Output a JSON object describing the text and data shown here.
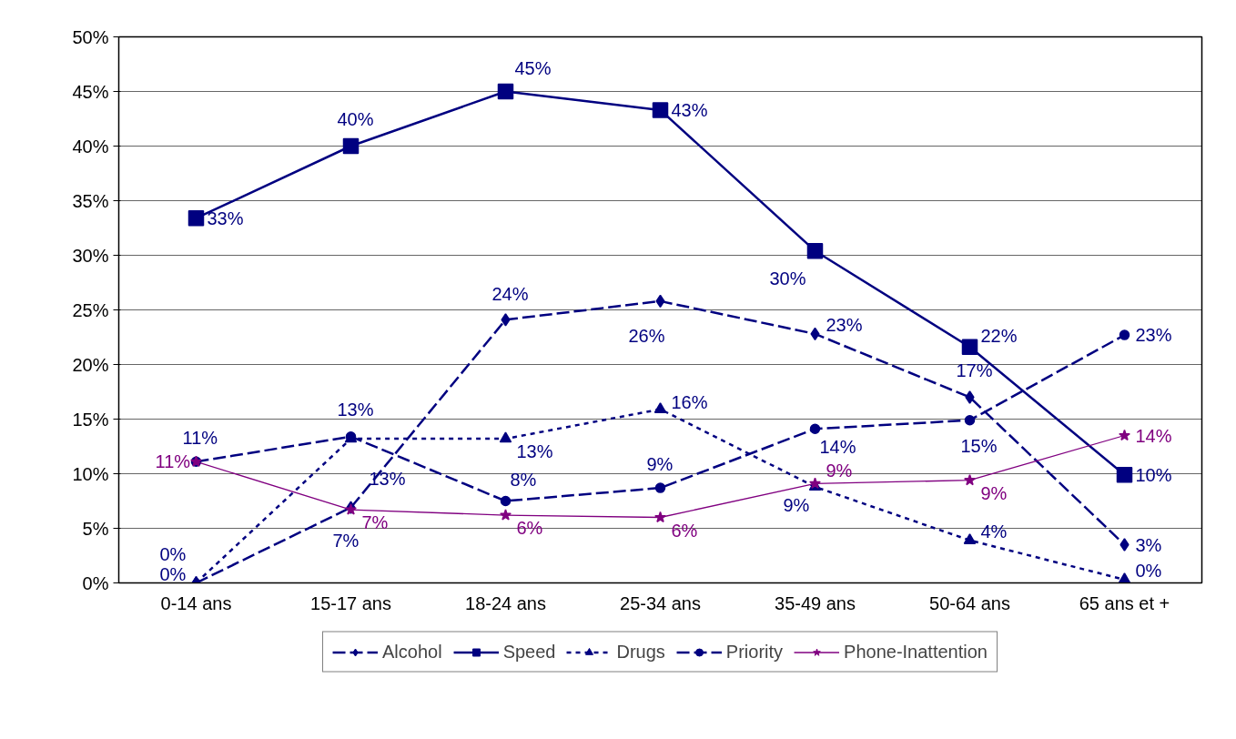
{
  "chart_data": {
    "type": "line",
    "categories": [
      "0-14 ans",
      "15-17 ans",
      "18-24 ans",
      "25-34 ans",
      "35-49 ans",
      "50-64 ans",
      "65 ans et +"
    ],
    "ylim": [
      0,
      50
    ],
    "yticks": [
      {
        "value": 0,
        "label": "0%"
      },
      {
        "value": 5,
        "label": "5%"
      },
      {
        "value": 10,
        "label": "10%"
      },
      {
        "value": 15,
        "label": "15%"
      },
      {
        "value": 20,
        "label": "20%"
      },
      {
        "value": 25,
        "label": "25%"
      },
      {
        "value": 30,
        "label": "30%"
      },
      {
        "value": 35,
        "label": "35%"
      },
      {
        "value": 40,
        "label": "40%"
      },
      {
        "value": 45,
        "label": "45%"
      },
      {
        "value": 50,
        "label": "50%"
      }
    ],
    "grid": "y",
    "legend": "bottom",
    "series": [
      {
        "name": "Alcohol",
        "color": "#000080",
        "marker": "diamond",
        "line_style": "dashed",
        "values": [
          0,
          6.9,
          24.1,
          25.8,
          22.8,
          17.0,
          3.5
        ],
        "value_labels": [
          "0%",
          "7%",
          "24%",
          "26%",
          "23%",
          "17%",
          "3%"
        ]
      },
      {
        "name": "Speed",
        "color": "#000080",
        "marker": "square",
        "line_style": "solid",
        "values": [
          33.4,
          40.0,
          45.0,
          43.3,
          30.4,
          21.6,
          9.9
        ],
        "value_labels": [
          "33%",
          "40%",
          "45%",
          "43%",
          "30%",
          "22%",
          "10%"
        ]
      },
      {
        "name": "Drugs",
        "color": "#000080",
        "marker": "triangle",
        "line_style": "dotted",
        "values": [
          0,
          13.2,
          13.2,
          15.9,
          8.8,
          3.9,
          0.3
        ],
        "value_labels": [
          "0%",
          "13%",
          "13%",
          "16%",
          "9%",
          "4%",
          "0%"
        ]
      },
      {
        "name": "Priority",
        "color": "#000080",
        "marker": "circle",
        "line_style": "dashed",
        "values": [
          11.1,
          13.4,
          7.5,
          8.7,
          14.1,
          14.9,
          22.7
        ],
        "value_labels": [
          "11%",
          "13%",
          "8%",
          "9%",
          "14%",
          "15%",
          "23%"
        ]
      },
      {
        "name": "Phone-Inattention",
        "color": "#800080",
        "marker": "star",
        "line_style": "solid",
        "values": [
          11.1,
          6.7,
          6.2,
          6.0,
          9.1,
          9.4,
          13.5
        ],
        "value_labels": [
          "11%",
          "7%",
          "6%",
          "6%",
          "9%",
          "9%",
          "14%"
        ]
      }
    ]
  }
}
